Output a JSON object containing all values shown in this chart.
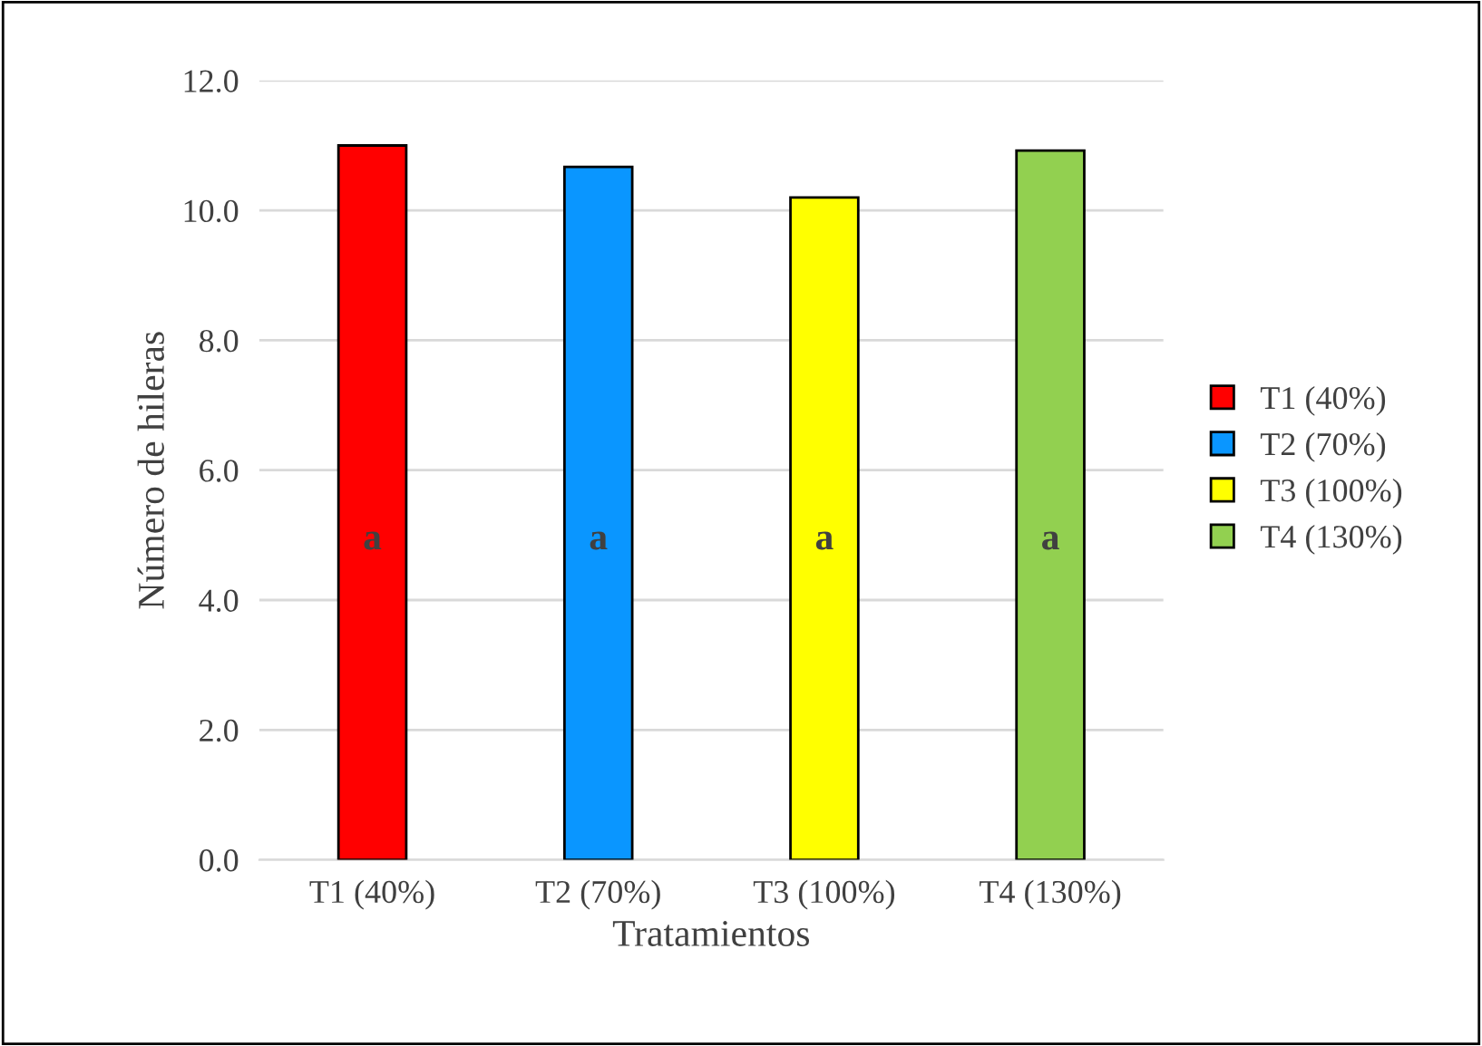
{
  "chart_data": {
    "type": "bar",
    "xlabel": "Tratamientos",
    "ylabel": "Número de hileras",
    "categories": [
      "T1 (40%)",
      "T2 (70%)",
      "T3 (100%)",
      "T4 (130%)"
    ],
    "series": [
      {
        "name": "T1 (40%)",
        "color": "#ff0000",
        "values": [
          11.0,
          null,
          null,
          null
        ]
      },
      {
        "name": "T2 (70%)",
        "color": "#0a96ff",
        "values": [
          null,
          10.67,
          null,
          null
        ]
      },
      {
        "name": "T3 (100%)",
        "color": "#ffff00",
        "values": [
          null,
          null,
          10.2,
          null
        ]
      },
      {
        "name": "T4 (130%)",
        "color": "#92d050",
        "values": [
          null,
          null,
          null,
          10.92
        ]
      }
    ],
    "ylim": [
      0,
      12
    ],
    "yticks": [
      {
        "value": 0,
        "label": "0.0"
      },
      {
        "value": 2,
        "label": "2.0"
      },
      {
        "value": 4,
        "label": "4.0"
      },
      {
        "value": 6,
        "label": "6.0"
      },
      {
        "value": 8,
        "label": "8.0"
      },
      {
        "value": 10,
        "label": "10.0"
      },
      {
        "value": 12,
        "label": "12.0"
      }
    ],
    "grid": "y",
    "legend": "right",
    "annotations": [
      "a",
      "a",
      "a",
      "a"
    ]
  }
}
